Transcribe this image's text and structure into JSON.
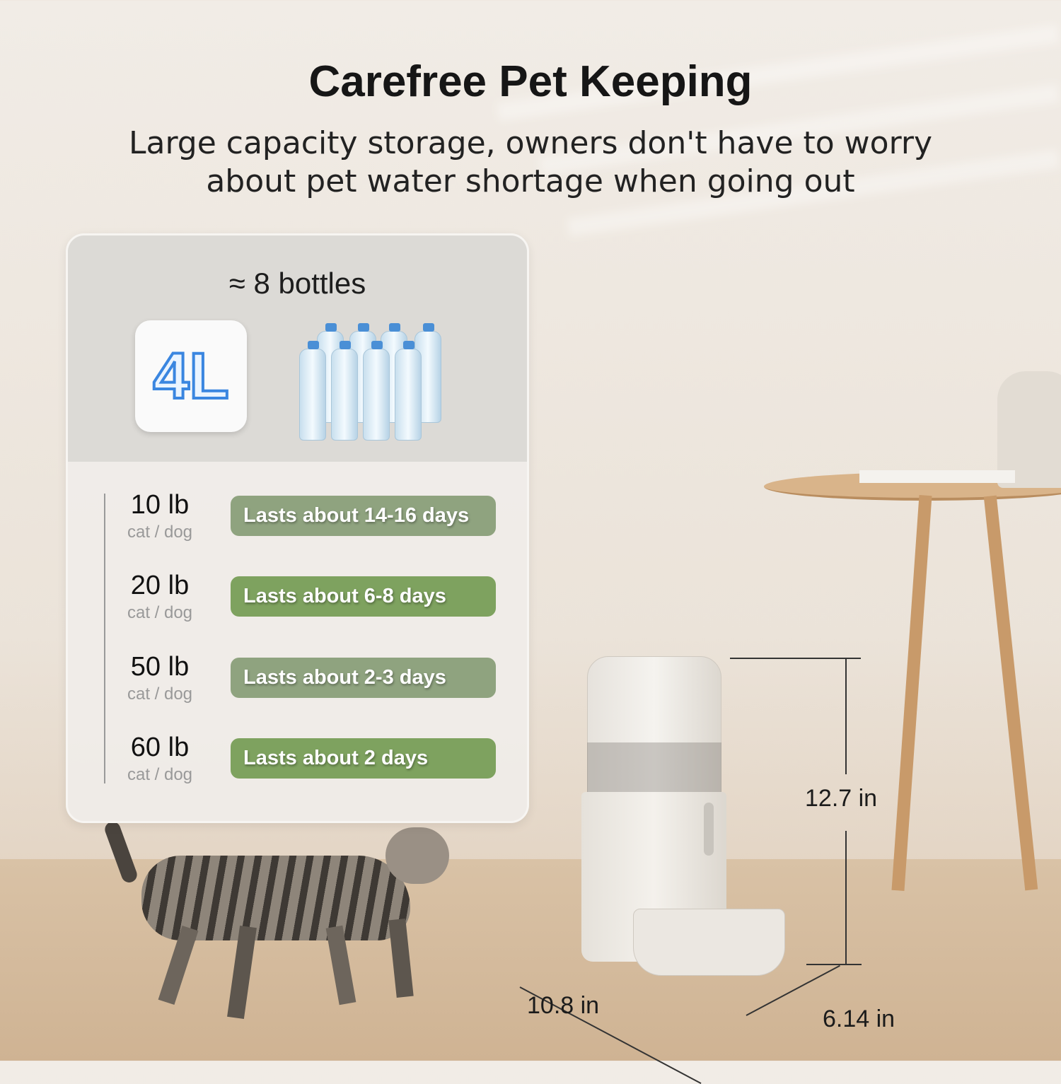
{
  "heading": {
    "title": "Carefree Pet Keeping",
    "subtitle_line1": "Large capacity storage, owners don't have to worry",
    "subtitle_line2": "about pet water shortage when going out"
  },
  "capacity_panel": {
    "equivalence": "≈ 8 bottles",
    "capacity_badge": "4L",
    "rows": [
      {
        "weight": "10 lb",
        "pet": "cat / dog",
        "duration": "Lasts about 14-16 days",
        "color": "#8fa37f"
      },
      {
        "weight": "20 lb",
        "pet": "cat / dog",
        "duration": "Lasts about 6-8 days",
        "color": "#7ea25f"
      },
      {
        "weight": "50 lb",
        "pet": "cat / dog",
        "duration": "Lasts about 2-3 days",
        "color": "#8fa37f"
      },
      {
        "weight": "60 lb",
        "pet": "cat / dog",
        "duration": "Lasts about  2  days",
        "color": "#7ea25f"
      }
    ]
  },
  "dimensions": {
    "height": "12.7 in",
    "width": "10.8 in",
    "depth": "6.14 in"
  }
}
